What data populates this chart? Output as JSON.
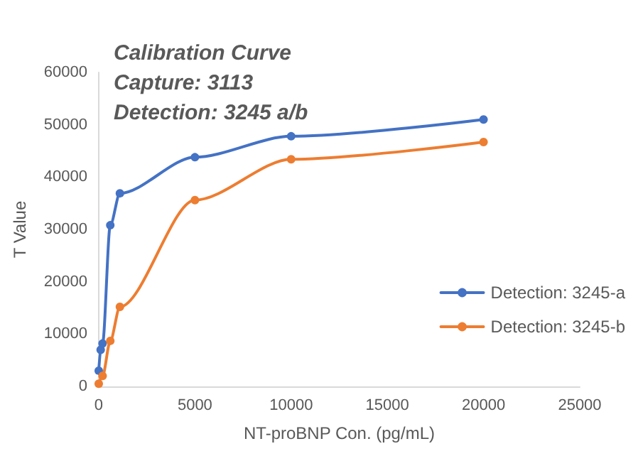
{
  "chart_data": {
    "type": "line",
    "title": "Calibration Curve\nCapture: 3113\nDetection: 3245 a/b",
    "xlabel": "NT-proBNP Con. (pg/mL)",
    "ylabel": "T Value",
    "series": [
      {
        "name": "Detection: 3245-a",
        "color": "#4472c4",
        "x": [
          0,
          100,
          200,
          600,
          1100,
          5000,
          10000,
          20000
        ],
        "values": [
          3000,
          7000,
          8200,
          30800,
          36900,
          43800,
          47800,
          51000
        ]
      },
      {
        "name": "Detection: 3245-b",
        "color": "#ed7d31",
        "x": [
          0,
          200,
          600,
          1100,
          5000,
          10000,
          20000
        ],
        "values": [
          500,
          2000,
          8700,
          15200,
          35600,
          43400,
          46700
        ]
      }
    ],
    "xlim": [
      0,
      25000
    ],
    "xticks": [
      0,
      5000,
      10000,
      15000,
      20000,
      25000
    ],
    "ylim": [
      0,
      60000
    ],
    "yticks": [
      0,
      10000,
      20000,
      30000,
      40000,
      50000,
      60000
    ],
    "grid": false,
    "legend": "right",
    "marker": "circle",
    "line_style": "solid"
  }
}
